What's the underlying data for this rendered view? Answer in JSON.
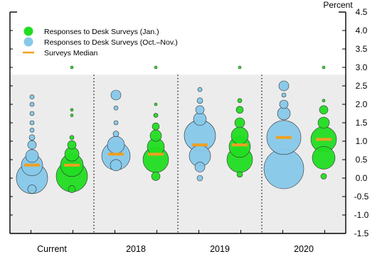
{
  "chart_data": {
    "type": "scatter",
    "chart_style": "bubble",
    "unit_label": "Percent",
    "y_axis": {
      "side": "right",
      "ylim": [
        -1.5,
        4.5
      ],
      "tick_labels": [
        "4.5",
        "4.0",
        "3.5",
        "3.0",
        "2.5",
        "2.0",
        "1.5",
        "1.0",
        "0.5",
        "0.0",
        "-0.5",
        "-1.0",
        "-1.5"
      ]
    },
    "categories": [
      "Current",
      "2018",
      "2019",
      "2020"
    ],
    "shaded_region_y": [
      -1.5,
      2.8
    ],
    "legend": {
      "position": "top-left",
      "items": [
        {
          "label": "Responses to Desk Surveys (Jan.)",
          "color": "#22dd22",
          "symbol": "circle"
        },
        {
          "label": "Responses to Desk Surveys (Oct.–Nov.)",
          "color": "#87c8ea",
          "symbol": "circle"
        },
        {
          "label": "Surveys Median",
          "color": "#f0a020",
          "symbol": "line"
        }
      ]
    },
    "series": [
      {
        "name": "Responses to Desk Surveys (Oct.–Nov.)",
        "color": "#87c8ea",
        "median": [
          0.35,
          0.65,
          0.9,
          1.1
        ],
        "points": [
          [
            {
              "y": 0.0,
              "r": 22
            },
            {
              "y": 0.35,
              "r": 15
            },
            {
              "y": 0.6,
              "r": 9
            },
            {
              "y": 0.9,
              "r": 6
            },
            {
              "y": 1.1,
              "r": 4
            },
            {
              "y": -0.3,
              "r": 6
            },
            {
              "y": 1.3,
              "r": 3
            },
            {
              "y": 1.5,
              "r": 3
            },
            {
              "y": 1.75,
              "r": 3
            },
            {
              "y": 2.0,
              "r": 3
            },
            {
              "y": 2.2,
              "r": 3
            }
          ],
          [
            {
              "y": 0.6,
              "r": 20
            },
            {
              "y": 0.9,
              "r": 12
            },
            {
              "y": 0.35,
              "r": 8
            },
            {
              "y": 2.25,
              "r": 7
            },
            {
              "y": 1.2,
              "r": 4
            },
            {
              "y": 1.5,
              "r": 3
            },
            {
              "y": 1.9,
              "r": 3
            }
          ],
          [
            {
              "y": 1.15,
              "r": 22
            },
            {
              "y": 0.6,
              "r": 15
            },
            {
              "y": 0.3,
              "r": 7
            },
            {
              "y": 1.6,
              "r": 9
            },
            {
              "y": 1.85,
              "r": 6
            },
            {
              "y": 2.1,
              "r": 4
            },
            {
              "y": 0.0,
              "r": 4
            },
            {
              "y": 2.4,
              "r": 3
            }
          ],
          [
            {
              "y": 0.25,
              "r": 28
            },
            {
              "y": 1.1,
              "r": 24
            },
            {
              "y": 1.75,
              "r": 9
            },
            {
              "y": 2.0,
              "r": 6
            },
            {
              "y": 2.5,
              "r": 7
            },
            {
              "y": 2.25,
              "r": 3
            }
          ]
        ]
      },
      {
        "name": "Responses to Desk Surveys (Jan.)",
        "color": "#22dd22",
        "median": [
          0.35,
          0.65,
          0.9,
          1.05
        ],
        "points": [
          [
            {
              "y": 0.05,
              "r": 22
            },
            {
              "y": 0.35,
              "r": 16
            },
            {
              "y": 0.65,
              "r": 10
            },
            {
              "y": 0.9,
              "r": 6
            },
            {
              "y": 1.1,
              "r": 3
            },
            {
              "y": -0.3,
              "r": 5
            },
            {
              "y": 3.0,
              "r": 2
            },
            {
              "y": 1.7,
              "r": 2
            },
            {
              "y": 1.85,
              "r": 2
            }
          ],
          [
            {
              "y": 0.5,
              "r": 18
            },
            {
              "y": 0.85,
              "r": 12
            },
            {
              "y": 1.15,
              "r": 8
            },
            {
              "y": 1.4,
              "r": 5
            },
            {
              "y": 0.05,
              "r": 6
            },
            {
              "y": 3.0,
              "r": 2
            },
            {
              "y": 2.0,
              "r": 2
            },
            {
              "y": 1.7,
              "r": 3
            }
          ],
          [
            {
              "y": 0.5,
              "r": 18
            },
            {
              "y": 0.85,
              "r": 15
            },
            {
              "y": 1.15,
              "r": 12
            },
            {
              "y": 1.5,
              "r": 7
            },
            {
              "y": 1.85,
              "r": 5
            },
            {
              "y": 2.1,
              "r": 3
            },
            {
              "y": 0.1,
              "r": 4
            },
            {
              "y": 3.0,
              "r": 2
            }
          ],
          [
            {
              "y": 0.55,
              "r": 16
            },
            {
              "y": 1.05,
              "r": 18
            },
            {
              "y": 1.5,
              "r": 8
            },
            {
              "y": 1.85,
              "r": 6
            },
            {
              "y": 0.05,
              "r": 4
            },
            {
              "y": 3.0,
              "r": 2
            },
            {
              "y": 2.1,
              "r": 2
            }
          ]
        ]
      }
    ]
  }
}
